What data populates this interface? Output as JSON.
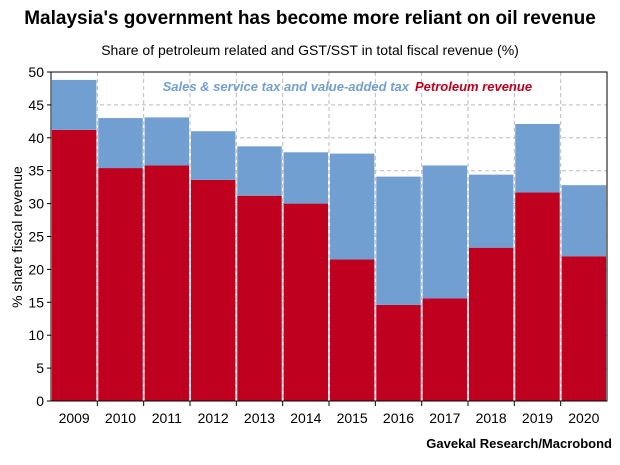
{
  "title": "Malaysia's government has become more reliant on oil revenue",
  "subtitle": "Share of petroleum related and GST/SST in total fiscal revenue (%)",
  "source": "Gavekal Research/Macrobond",
  "colors": {
    "petroleum": "#c0001f",
    "tax": "#729fd1",
    "grid": "#bbbbbb"
  },
  "chart_data": {
    "type": "bar",
    "stacked": true,
    "categories": [
      "2009",
      "2010",
      "2011",
      "2012",
      "2013",
      "2014",
      "2015",
      "2016",
      "2017",
      "2018",
      "2019",
      "2020"
    ],
    "series": [
      {
        "name": "Petroleum revenue",
        "color": "#c0001f",
        "values": [
          41.2,
          35.4,
          35.8,
          33.6,
          31.2,
          30.0,
          21.5,
          14.6,
          15.6,
          23.3,
          31.7,
          22.0
        ]
      },
      {
        "name": "Sales & service tax and value-added tax",
        "color": "#729fd1",
        "values": [
          7.6,
          7.6,
          7.3,
          7.4,
          7.5,
          7.8,
          16.1,
          19.5,
          20.2,
          11.1,
          10.4,
          10.8
        ]
      }
    ],
    "ylabel": "% share fiscal revenue",
    "ylim": [
      0,
      50
    ],
    "yticks": [
      0,
      5,
      10,
      15,
      20,
      25,
      30,
      35,
      40,
      45,
      50
    ],
    "grid": true,
    "legend_placement": "top-center"
  }
}
